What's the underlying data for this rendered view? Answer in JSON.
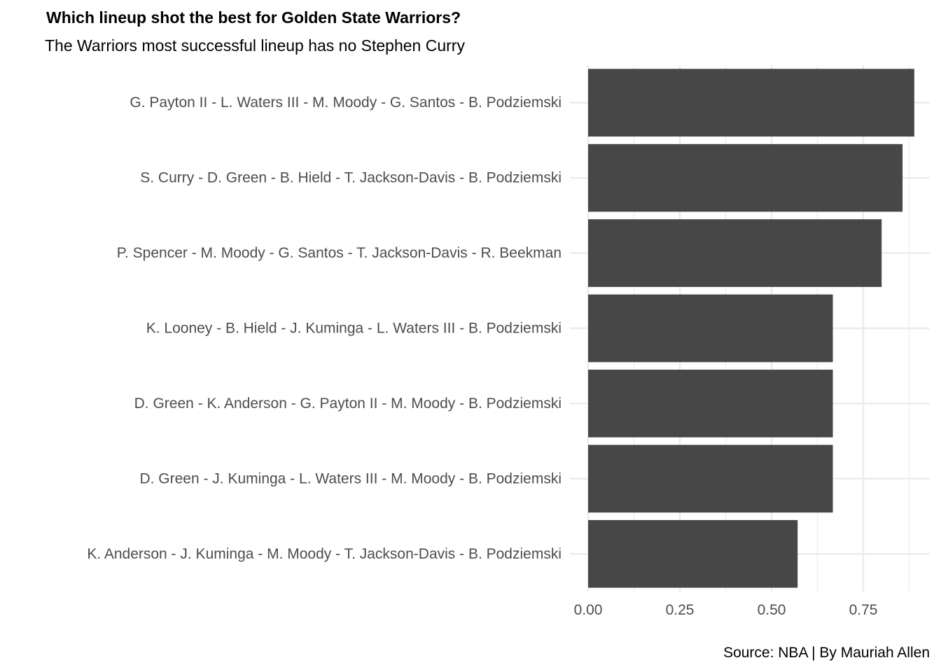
{
  "chart_data": {
    "type": "bar",
    "orientation": "horizontal",
    "title": "Which lineup shot the best for Golden State Warriors?",
    "subtitle": "The Warriors most successful lineup has no Stephen Curry",
    "caption": "Source: NBA | By Mauriah Allen",
    "xlabel": "",
    "ylabel": "",
    "xlim": [
      0,
      0.9
    ],
    "x_ticks": [
      "0.00",
      "0.25",
      "0.50",
      "0.75"
    ],
    "grid": true,
    "categories": [
      "G. Payton II - L. Waters III - M. Moody - G. Santos - B. Podziemski",
      "S. Curry - D. Green - B. Hield - T. Jackson-Davis - B. Podziemski",
      "P. Spencer - M. Moody - G. Santos - T. Jackson-Davis - R. Beekman",
      "K. Looney - B. Hield - J. Kuminga - L. Waters III - B. Podziemski",
      "D. Green - K. Anderson - G. Payton II - M. Moody - B. Podziemski",
      "D. Green - J. Kuminga - L. Waters III - M. Moody - B. Podziemski",
      "K. Anderson - J. Kuminga - M. Moody - T. Jackson-Davis - B. Podziemski"
    ],
    "values": [
      0.889,
      0.857,
      0.8,
      0.667,
      0.667,
      0.667,
      0.571
    ],
    "bar_color": "#474747",
    "grid_color": "#ebebeb",
    "label_color": "#4d4d4d"
  }
}
